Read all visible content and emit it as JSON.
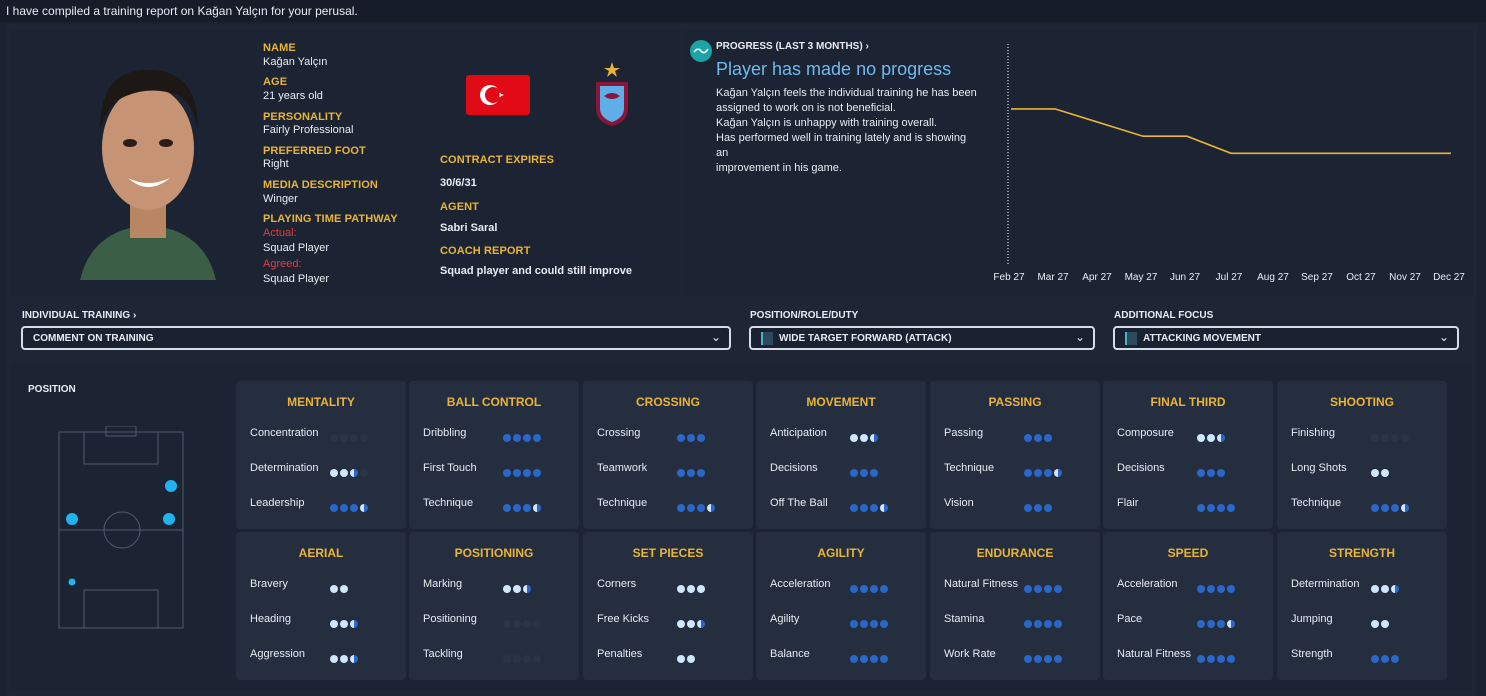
{
  "header": {
    "message": "I have compiled a training report on Kağan Yalçın for your perusal."
  },
  "player": {
    "name_label": "NAME",
    "name": "Kağan Yalçın",
    "age_label": "AGE",
    "age": "21 years old",
    "personality_label": "PERSONALITY",
    "personality": "Fairly Professional",
    "foot_label": "PREFERRED FOOT",
    "foot": "Right",
    "media_label": "MEDIA DESCRIPTION",
    "media": "Winger",
    "pathway_label": "PLAYING TIME PATHWAY",
    "actual_label": "Actual:",
    "actual": "Squad Player",
    "agreed_label": "Agreed:",
    "agreed": "Squad Player",
    "contract_label": "CONTRACT EXPIRES",
    "contract": "30/6/31",
    "agent_label": "AGENT",
    "agent": "Sabri Saral",
    "coach_label": "COACH REPORT",
    "coach": "Squad player and could still improve"
  },
  "progress": {
    "title": "PROGRESS (LAST 3 MONTHS)",
    "headline": "Player has made no progress",
    "lines": [
      "Kağan Yalçın feels the individual training he has been",
      "assigned to work on is not beneficial.",
      "Kağan Yalçın is unhappy with training overall.",
      "Has performed well in training lately and is showing an",
      "improvement in his game."
    ]
  },
  "chart_data": {
    "type": "line",
    "x": [
      "Feb 27",
      "Mar 27",
      "Apr 27",
      "May 27",
      "Jun 27",
      "Jul 27",
      "Aug 27",
      "Sep 27",
      "Oct 27",
      "Nov 27",
      "Dec 27"
    ],
    "series": [
      {
        "values": [
          4.6,
          4.6,
          4.2,
          3.8,
          3.8,
          3.3,
          3.3,
          3.3,
          3.3,
          3.3,
          3.3
        ]
      }
    ],
    "ylim": [
      0,
      6.5
    ],
    "color": "#e9b437"
  },
  "training": {
    "individual_label": "INDIVIDUAL TRAINING",
    "individual_value": "COMMENT ON TRAINING",
    "role_label": "POSITION/ROLE/DUTY",
    "role_value": "WIDE TARGET FORWARD (ATTACK)",
    "focus_label": "ADDITIONAL FOCUS",
    "focus_value": "ATTACKING MOVEMENT"
  },
  "position_label": "POSITION",
  "cards": [
    {
      "title": "MENTALITY",
      "attrs": [
        [
          "Concentration",
          [
            0,
            0,
            0,
            0
          ]
        ],
        [
          "Determination",
          [
            2,
            2,
            1,
            0
          ]
        ],
        [
          "Leadership",
          [
            3,
            3,
            3,
            1
          ]
        ]
      ]
    },
    {
      "title": "BALL CONTROL",
      "attrs": [
        [
          "Dribbling",
          [
            3,
            3,
            3,
            3
          ]
        ],
        [
          "First Touch",
          [
            3,
            3,
            3,
            3
          ]
        ],
        [
          "Technique",
          [
            3,
            3,
            3,
            1
          ]
        ]
      ]
    },
    {
      "title": "CROSSING",
      "attrs": [
        [
          "Crossing",
          [
            3,
            3,
            3
          ]
        ],
        [
          "Teamwork",
          [
            3,
            3,
            3
          ]
        ],
        [
          "Technique",
          [
            3,
            3,
            3,
            1
          ]
        ]
      ]
    },
    {
      "title": "MOVEMENT",
      "attrs": [
        [
          "Anticipation",
          [
            2,
            2,
            1
          ]
        ],
        [
          "Decisions",
          [
            3,
            3,
            3
          ]
        ],
        [
          "Off The Ball",
          [
            3,
            3,
            3,
            1
          ]
        ]
      ]
    },
    {
      "title": "PASSING",
      "attrs": [
        [
          "Passing",
          [
            3,
            3,
            3
          ]
        ],
        [
          "Technique",
          [
            3,
            3,
            3,
            1
          ]
        ],
        [
          "Vision",
          [
            3,
            3,
            3
          ]
        ]
      ]
    },
    {
      "title": "FINAL THIRD",
      "attrs": [
        [
          "Composure",
          [
            2,
            2,
            1
          ]
        ],
        [
          "Decisions",
          [
            3,
            3,
            3
          ]
        ],
        [
          "Flair",
          [
            3,
            3,
            3,
            3
          ]
        ]
      ]
    },
    {
      "title": "SHOOTING",
      "attrs": [
        [
          "Finishing",
          [
            0,
            0,
            0,
            0
          ]
        ],
        [
          "Long Shots",
          [
            2,
            2
          ]
        ],
        [
          "Technique",
          [
            3,
            3,
            3,
            1
          ]
        ]
      ]
    },
    {
      "title": "AERIAL",
      "attrs": [
        [
          "Bravery",
          [
            2,
            2
          ]
        ],
        [
          "Heading",
          [
            2,
            2,
            1
          ]
        ],
        [
          "Aggression",
          [
            2,
            2,
            1
          ]
        ]
      ]
    },
    {
      "title": "POSITIONING",
      "attrs": [
        [
          "Marking",
          [
            2,
            2,
            1
          ]
        ],
        [
          "Positioning",
          [
            0,
            0,
            0,
            0
          ]
        ],
        [
          "Tackling",
          [
            0,
            0,
            0,
            0
          ]
        ]
      ]
    },
    {
      "title": "SET PIECES",
      "attrs": [
        [
          "Corners",
          [
            2,
            2,
            2
          ]
        ],
        [
          "Free Kicks",
          [
            2,
            2,
            1
          ]
        ],
        [
          "Penalties",
          [
            2,
            2
          ]
        ]
      ]
    },
    {
      "title": "AGILITY",
      "attrs": [
        [
          "Acceleration",
          [
            3,
            3,
            3,
            3
          ]
        ],
        [
          "Agility",
          [
            3,
            3,
            3,
            3
          ]
        ],
        [
          "Balance",
          [
            3,
            3,
            3,
            3
          ]
        ]
      ]
    },
    {
      "title": "ENDURANCE",
      "attrs": [
        [
          "Natural Fitness",
          [
            3,
            3,
            3,
            3
          ]
        ],
        [
          "Stamina",
          [
            3,
            3,
            3,
            3
          ]
        ],
        [
          "Work Rate",
          [
            3,
            3,
            3,
            3
          ]
        ]
      ]
    },
    {
      "title": "SPEED",
      "attrs": [
        [
          "Acceleration",
          [
            3,
            3,
            3,
            3
          ]
        ],
        [
          "Pace",
          [
            3,
            3,
            3,
            1
          ]
        ],
        [
          "Natural Fitness",
          [
            3,
            3,
            3,
            3
          ]
        ]
      ]
    },
    {
      "title": "STRENGTH",
      "attrs": [
        [
          "Determination",
          [
            2,
            2,
            1
          ]
        ],
        [
          "Jumping",
          [
            2,
            2
          ]
        ],
        [
          "Strength",
          [
            3,
            3,
            3
          ]
        ]
      ]
    }
  ]
}
